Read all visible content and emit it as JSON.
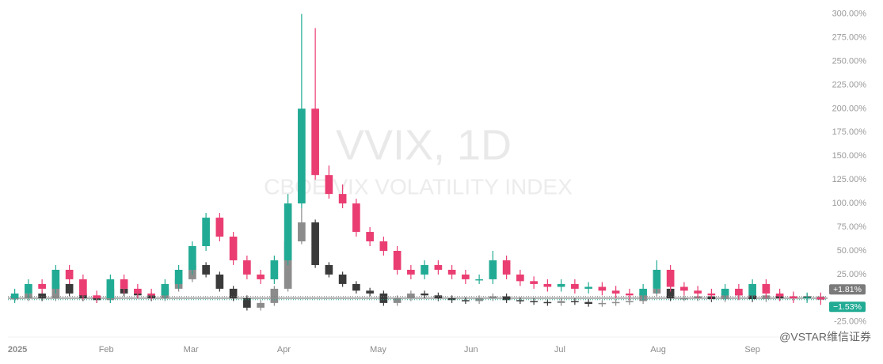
{
  "chart_data": {
    "type": "candlestick",
    "title": "VVIX, 1D",
    "subtitle": "CBOE VIX VOLATILITY INDEX",
    "watermark": "@VSTAR维信证券",
    "ylim": [
      -36,
      308
    ],
    "yticks": [
      {
        "value": 300,
        "label": "300.00%"
      },
      {
        "value": 275,
        "label": "275.00%"
      },
      {
        "value": 250,
        "label": "250.00%"
      },
      {
        "value": 225,
        "label": "225.00%"
      },
      {
        "value": 200,
        "label": "200.00%"
      },
      {
        "value": 175,
        "label": "175.00%"
      },
      {
        "value": 150,
        "label": "150.00%"
      },
      {
        "value": 125,
        "label": "125.00%"
      },
      {
        "value": 100,
        "label": "100.00%"
      },
      {
        "value": 75,
        "label": "75.00%"
      },
      {
        "value": 50,
        "label": "50.00%"
      },
      {
        "value": 25,
        "label": "25.00%"
      },
      {
        "value": -25,
        "label": "-25.00%"
      }
    ],
    "xlim": [
      0,
      60
    ],
    "xticks": [
      {
        "value": 0.7,
        "label": "2025"
      },
      {
        "value": 7.2,
        "label": "Feb"
      },
      {
        "value": 13.4,
        "label": "Mar"
      },
      {
        "value": 20.2,
        "label": "Apr"
      },
      {
        "value": 27.1,
        "label": "May"
      },
      {
        "value": 33.9,
        "label": "Jun"
      },
      {
        "value": 40.4,
        "label": "Jul"
      },
      {
        "value": 47.6,
        "label": "Aug"
      },
      {
        "value": 54.5,
        "label": "Sep"
      }
    ],
    "series": [
      {
        "up_color": "#22ab94",
        "down_color": "#ea3d72",
        "open": [
          0,
          5,
          15,
          10,
          30,
          20,
          3,
          0,
          20,
          10,
          5,
          3,
          15,
          30,
          55,
          85,
          65,
          40,
          25,
          20,
          40,
          100,
          200,
          130,
          110,
          100,
          70,
          60,
          50,
          30,
          25,
          35,
          30,
          25,
          20,
          20,
          40,
          25,
          18,
          15,
          12,
          15,
          10,
          12,
          8,
          5,
          3,
          10,
          30,
          12,
          8,
          5,
          3,
          10,
          3,
          15,
          5,
          2,
          0,
          1
        ],
        "high": [
          10,
          20,
          20,
          35,
          35,
          25,
          8,
          25,
          25,
          15,
          10,
          20,
          35,
          60,
          90,
          90,
          70,
          45,
          30,
          45,
          110,
          300,
          285,
          140,
          120,
          105,
          75,
          65,
          55,
          35,
          40,
          40,
          35,
          30,
          25,
          50,
          45,
          30,
          23,
          20,
          20,
          20,
          17,
          17,
          13,
          10,
          15,
          40,
          35,
          17,
          13,
          10,
          15,
          15,
          20,
          20,
          10,
          7,
          6,
          6
        ],
        "low": [
          -5,
          0,
          5,
          5,
          15,
          -2,
          -5,
          -5,
          5,
          0,
          -2,
          -2,
          10,
          25,
          50,
          60,
          35,
          20,
          15,
          15,
          35,
          95,
          125,
          105,
          95,
          65,
          55,
          45,
          25,
          20,
          20,
          25,
          20,
          15,
          15,
          15,
          20,
          13,
          10,
          7,
          7,
          5,
          5,
          3,
          0,
          -2,
          -2,
          5,
          7,
          3,
          0,
          -2,
          -2,
          -2,
          -2,
          0,
          -3,
          -5,
          -5,
          -7
        ],
        "close": [
          5,
          15,
          10,
          30,
          20,
          3,
          0,
          20,
          10,
          5,
          3,
          15,
          30,
          55,
          85,
          65,
          40,
          25,
          20,
          40,
          100,
          200,
          130,
          110,
          100,
          70,
          60,
          50,
          30,
          25,
          35,
          30,
          25,
          20,
          20,
          40,
          25,
          18,
          15,
          12,
          15,
          10,
          12,
          8,
          5,
          3,
          10,
          30,
          12,
          8,
          5,
          3,
          10,
          3,
          15,
          5,
          2,
          0,
          1,
          -1.53
        ],
        "last_label": "−1.53%",
        "label_color": "#22ab94"
      },
      {
        "up_color": "#8c8c8c",
        "down_color": "#3a3a3a",
        "open": [
          0,
          0,
          5,
          0,
          15,
          5,
          0,
          -2,
          10,
          5,
          3,
          0,
          10,
          20,
          35,
          25,
          10,
          0,
          -10,
          -5,
          10,
          60,
          80,
          35,
          25,
          15,
          8,
          5,
          -5,
          0,
          5,
          3,
          0,
          -2,
          -3,
          0,
          2,
          -2,
          -3,
          -4,
          -5,
          -3,
          -4,
          -6,
          -5,
          -4,
          -3,
          5,
          10,
          0,
          0,
          2,
          -1,
          5,
          3,
          -1,
          3,
          0,
          2,
          0
        ],
        "high": [
          3,
          8,
          8,
          18,
          18,
          8,
          3,
          13,
          13,
          8,
          6,
          13,
          23,
          38,
          38,
          28,
          13,
          3,
          -2,
          13,
          63,
          95,
          83,
          38,
          28,
          18,
          11,
          8,
          3,
          8,
          8,
          6,
          3,
          1,
          3,
          5,
          5,
          1,
          0,
          -1,
          0,
          0,
          -1,
          -2,
          -1,
          0,
          8,
          13,
          13,
          3,
          5,
          5,
          8,
          8,
          6,
          6,
          6,
          5,
          5,
          5
        ],
        "low": [
          -3,
          -3,
          -3,
          -3,
          2,
          -3,
          -5,
          -5,
          2,
          0,
          -3,
          -3,
          7,
          17,
          22,
          7,
          -3,
          -13,
          -13,
          -8,
          7,
          57,
          32,
          22,
          12,
          5,
          2,
          -8,
          -8,
          -3,
          0,
          -3,
          -5,
          -6,
          -6,
          -3,
          -5,
          -6,
          -7,
          -8,
          -8,
          -7,
          -9,
          -9,
          -8,
          -7,
          -6,
          2,
          -3,
          -3,
          -3,
          -4,
          -4,
          0,
          -4,
          -4,
          -3,
          -3,
          -3,
          -3
        ],
        "close": [
          0,
          5,
          0,
          15,
          5,
          0,
          -2,
          10,
          5,
          3,
          0,
          10,
          20,
          35,
          25,
          10,
          0,
          -10,
          -5,
          10,
          60,
          80,
          35,
          25,
          15,
          8,
          5,
          -5,
          0,
          5,
          3,
          0,
          -2,
          -3,
          0,
          2,
          -2,
          -3,
          -4,
          -5,
          -3,
          -4,
          -6,
          -5,
          -4,
          -3,
          5,
          10,
          0,
          0,
          2,
          -1,
          5,
          3,
          -1,
          3,
          0,
          2,
          0,
          1.81
        ],
        "last_label": "+1.81%",
        "label_color": "#7a7a7a"
      }
    ]
  }
}
